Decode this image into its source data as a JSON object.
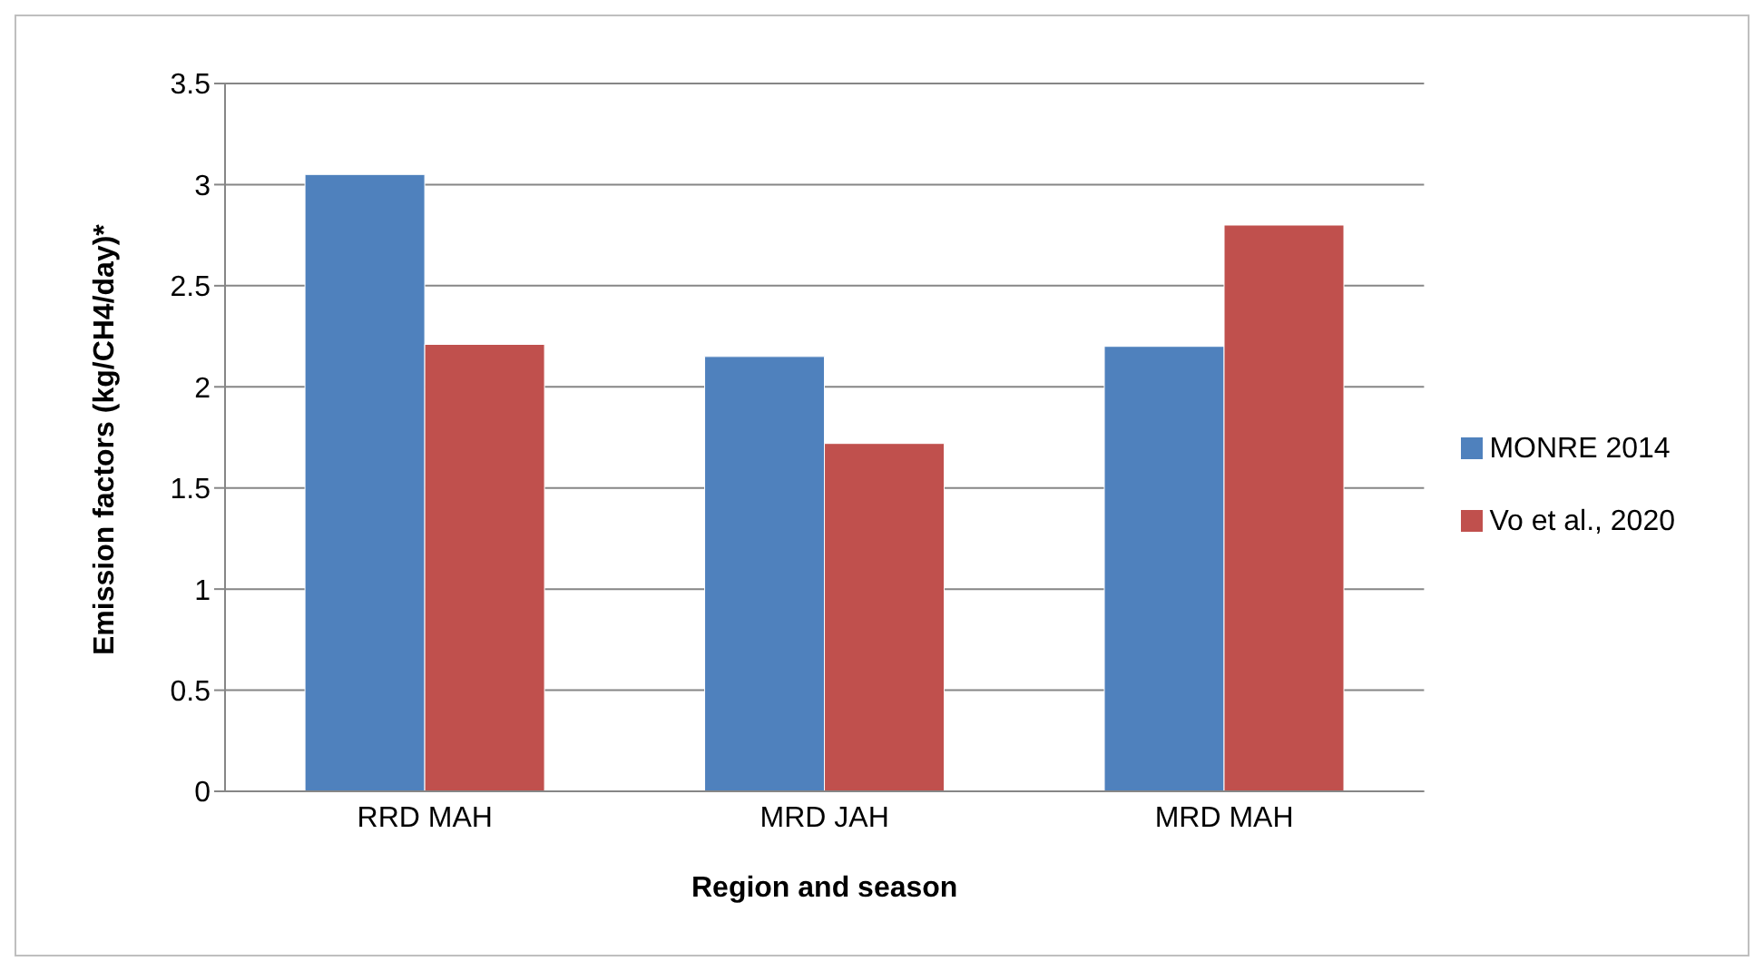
{
  "chart_data": {
    "type": "bar",
    "xlabel": "Region and season",
    "ylabel": "Emission factors (kg/CH4/day)*",
    "categories": [
      "RRD MAH",
      "MRD JAH",
      "MRD MAH"
    ],
    "series": [
      {
        "name": "MONRE 2014",
        "color": "#4f81bd",
        "values": [
          3.05,
          2.15,
          2.2
        ]
      },
      {
        "name": "Vo et al., 2020",
        "color": "#c0504d",
        "values": [
          2.21,
          1.72,
          2.8
        ]
      }
    ],
    "ylim": [
      0,
      3.5
    ],
    "yticks": [
      0,
      0.5,
      1,
      1.5,
      2,
      2.5,
      3,
      3.5
    ],
    "grid": "y",
    "legend": "right"
  }
}
